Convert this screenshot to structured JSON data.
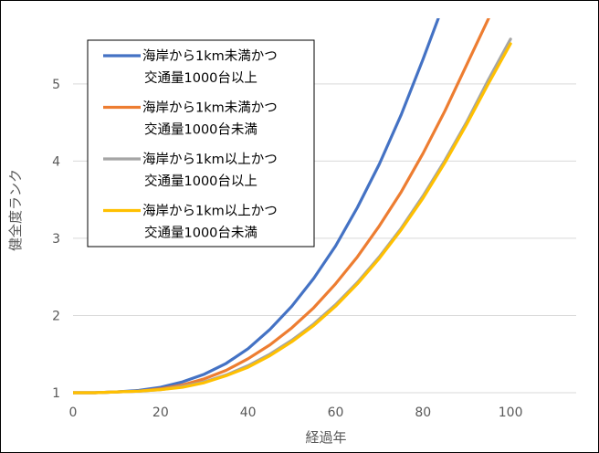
{
  "chart_data": {
    "type": "line",
    "title": "",
    "xlabel": "経過年",
    "ylabel": "健全度ランク",
    "xlim": [
      0,
      115
    ],
    "ylim": [
      1,
      5.85
    ],
    "xticks": [
      0,
      20,
      40,
      60,
      80,
      100
    ],
    "yticks": [
      1,
      2,
      3,
      4,
      5
    ],
    "grid": "horizontal",
    "legend_position": "top-left",
    "series": [
      {
        "name": "海岸から1km未満かつ交通量1000台以上",
        "legend_lines": [
          "海岸から1km未満かつ",
          "交通量1000台以上"
        ],
        "color": "#4472C4",
        "x": [
          0,
          5,
          10,
          15,
          20,
          25,
          30,
          35,
          40,
          45,
          50,
          55,
          60,
          65,
          70,
          75,
          80,
          83.5
        ],
        "y": [
          1.0,
          1.0,
          1.01,
          1.03,
          1.07,
          1.14,
          1.24,
          1.38,
          1.57,
          1.82,
          2.12,
          2.48,
          2.9,
          3.4,
          3.96,
          4.6,
          5.32,
          5.85
        ]
      },
      {
        "name": "海岸から1km未満かつ交通量1000台未満",
        "legend_lines": [
          "海岸から1km未満かつ",
          "交通量1000台未満"
        ],
        "color": "#ED7D31",
        "x": [
          0,
          5,
          10,
          15,
          20,
          25,
          30,
          35,
          40,
          45,
          50,
          55,
          60,
          65,
          70,
          75,
          80,
          85,
          90,
          95
        ],
        "y": [
          1.0,
          1.0,
          1.01,
          1.02,
          1.05,
          1.1,
          1.18,
          1.29,
          1.44,
          1.62,
          1.84,
          2.1,
          2.41,
          2.76,
          3.16,
          3.6,
          4.1,
          4.65,
          5.25,
          5.85
        ]
      },
      {
        "name": "海岸から1km以上かつ交通量1000台以上",
        "legend_lines": [
          "海岸から1km以上かつ",
          "交通量1000台以上"
        ],
        "color": "#A5A5A5",
        "x": [
          0,
          5,
          10,
          15,
          20,
          25,
          30,
          35,
          40,
          45,
          50,
          55,
          60,
          65,
          70,
          75,
          80,
          85,
          90,
          95,
          100
        ],
        "y": [
          1.0,
          1.0,
          1.01,
          1.02,
          1.04,
          1.08,
          1.14,
          1.23,
          1.35,
          1.5,
          1.68,
          1.89,
          2.14,
          2.43,
          2.76,
          3.13,
          3.55,
          4.01,
          4.51,
          5.06,
          5.58
        ]
      },
      {
        "name": "海岸から1km以上かつ交通量1000台未満",
        "legend_lines": [
          "海岸から1km以上かつ",
          "交通量1000台未満"
        ],
        "color": "#FFC000",
        "x": [
          0,
          5,
          10,
          15,
          20,
          25,
          30,
          35,
          40,
          45,
          50,
          55,
          60,
          65,
          70,
          75,
          80,
          85,
          90,
          95,
          100
        ],
        "y": [
          1.0,
          1.0,
          1.01,
          1.02,
          1.04,
          1.07,
          1.13,
          1.22,
          1.33,
          1.48,
          1.66,
          1.87,
          2.12,
          2.41,
          2.74,
          3.11,
          3.52,
          3.98,
          4.48,
          5.01,
          5.52
        ]
      }
    ]
  }
}
